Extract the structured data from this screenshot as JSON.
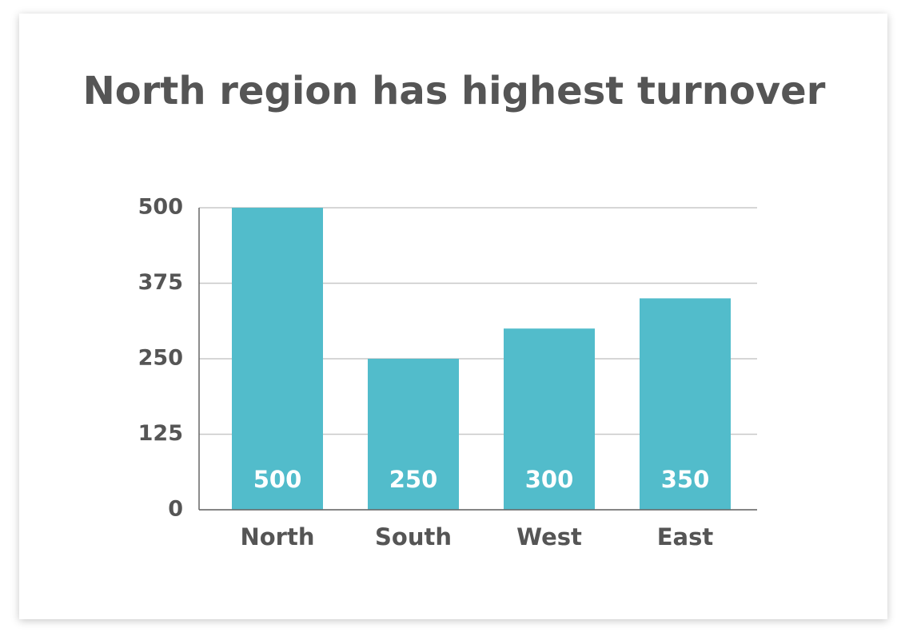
{
  "chart_data": {
    "type": "bar",
    "title": "North region has highest turnover",
    "categories": [
      "North",
      "South",
      "West",
      "East"
    ],
    "values": [
      500,
      250,
      300,
      350
    ],
    "color": "#52bccb",
    "ylim": [
      0,
      500
    ],
    "yticks": [
      0,
      125,
      250,
      375,
      500
    ],
    "grid": true
  }
}
